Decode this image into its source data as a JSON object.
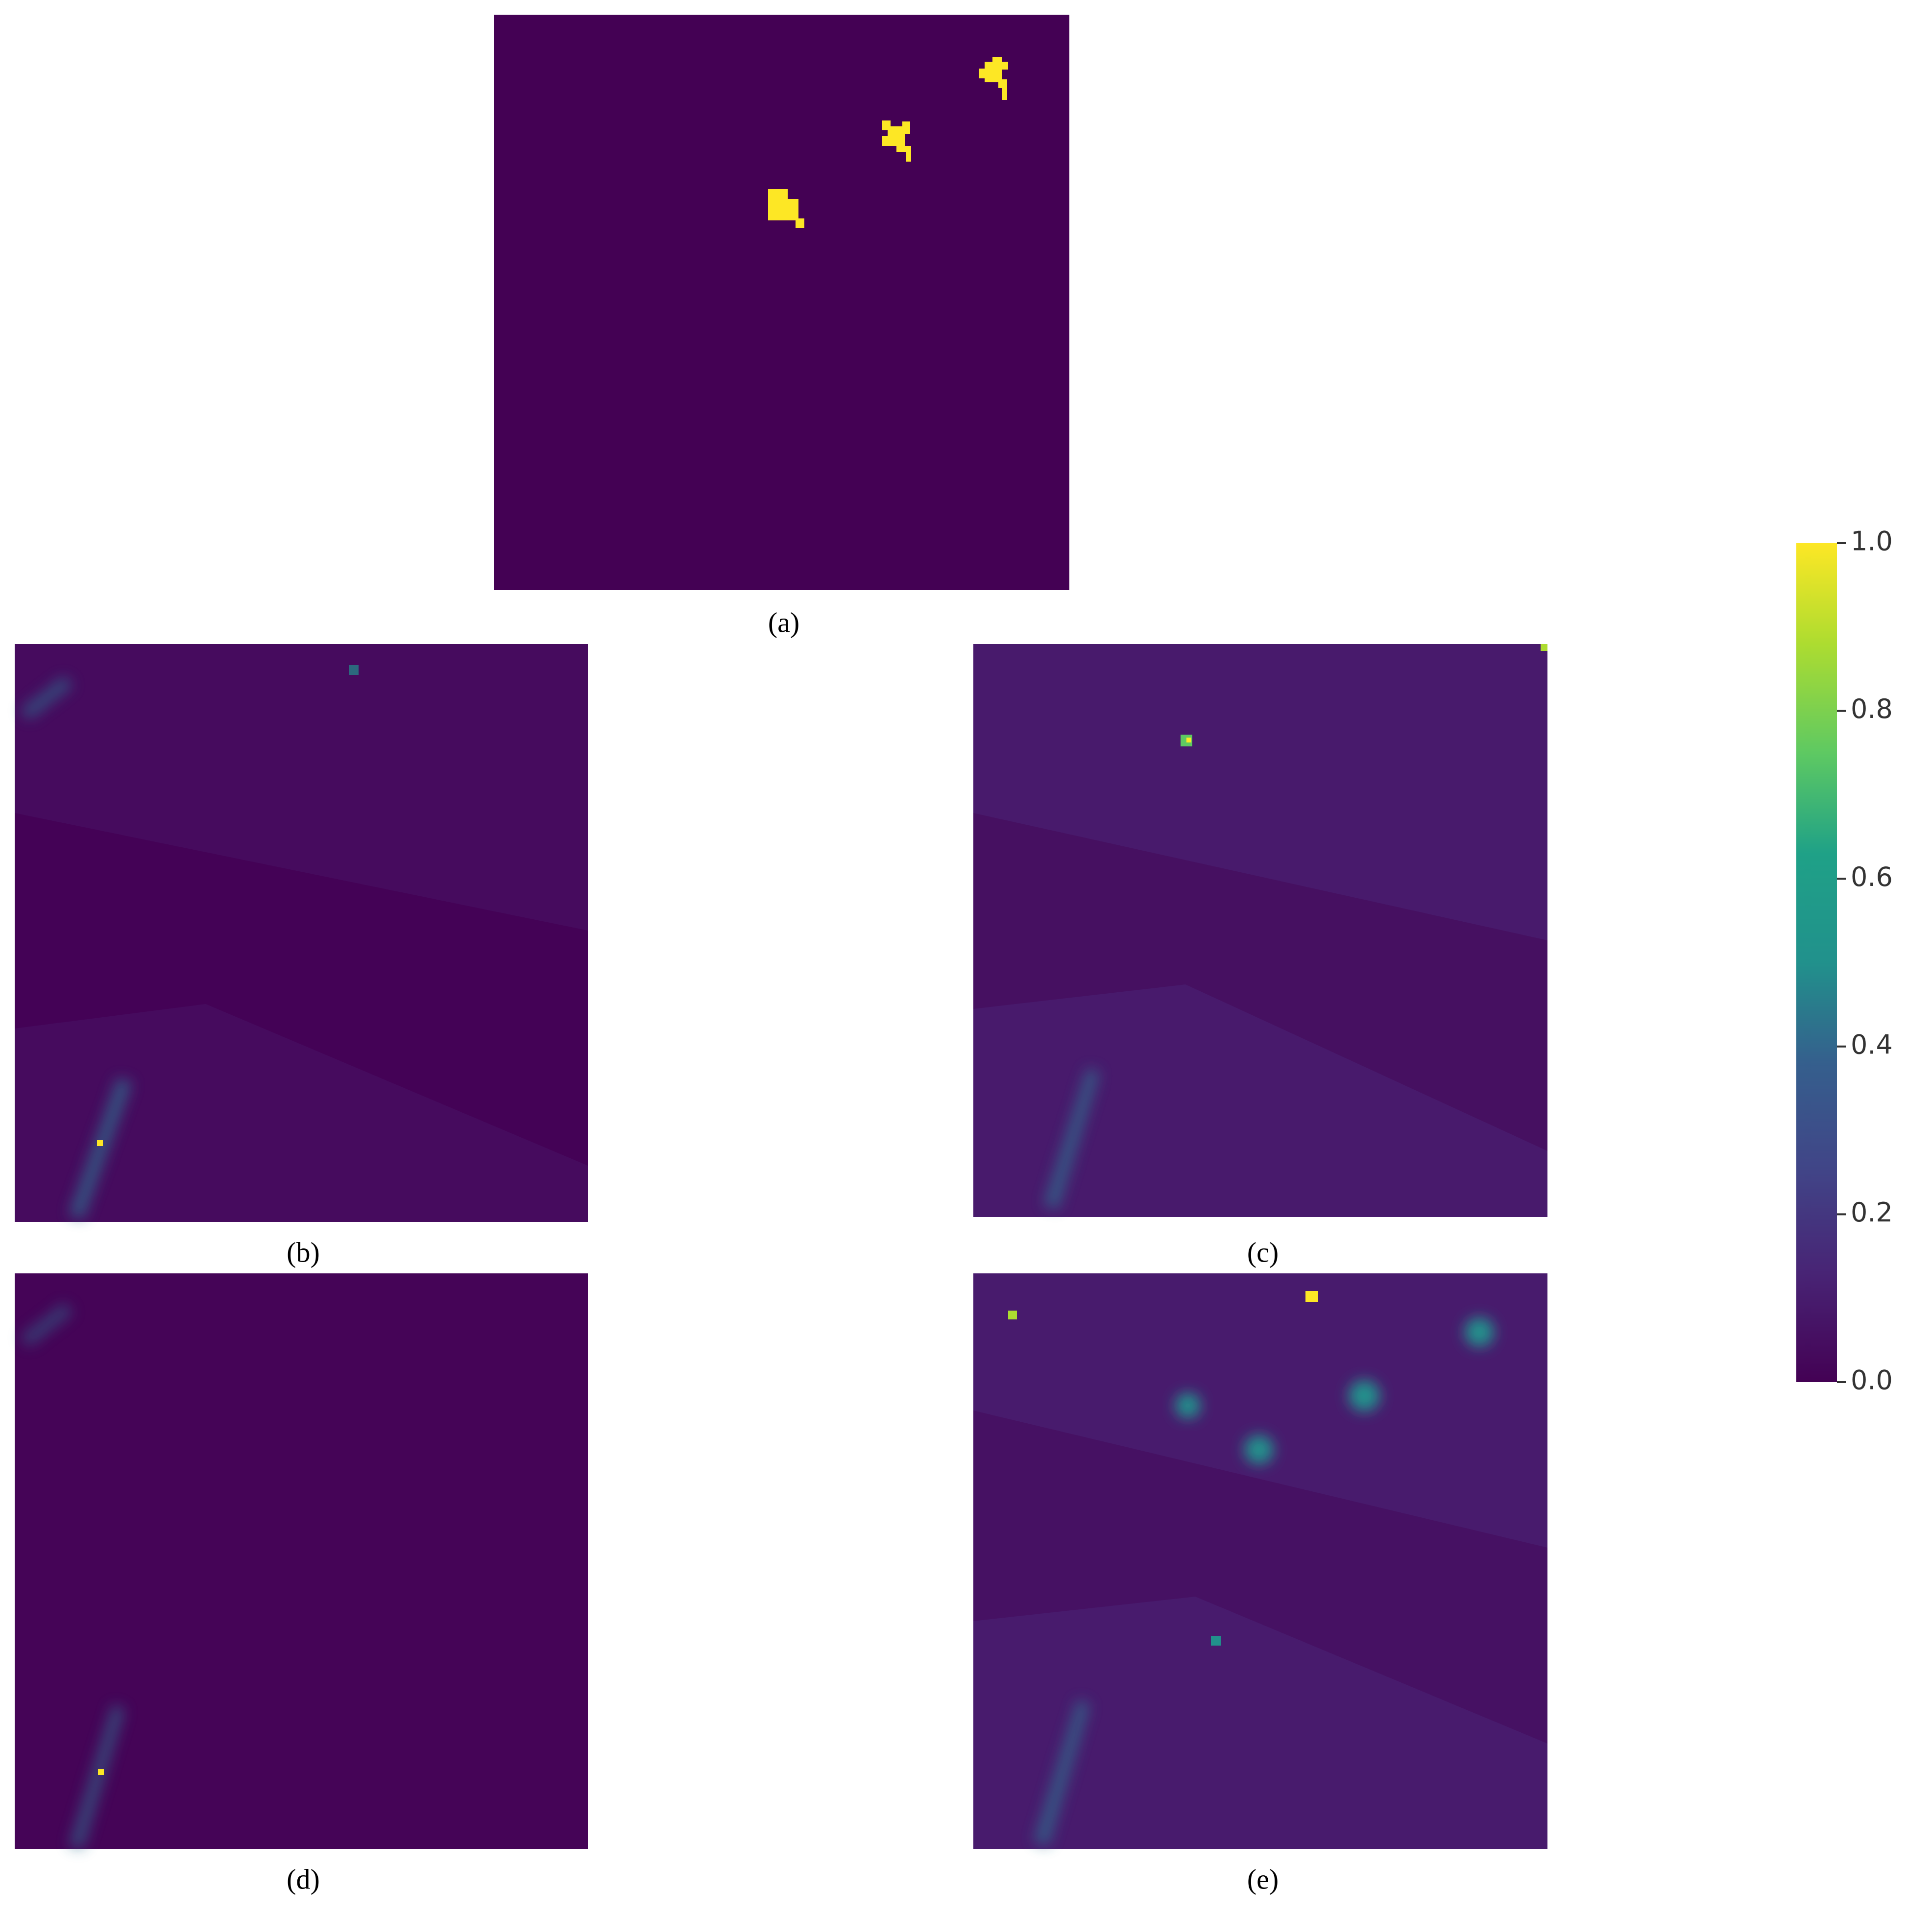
{
  "panels": [
    {
      "label": "(a)"
    },
    {
      "label": "(b)"
    },
    {
      "label": "(c)"
    },
    {
      "label": "(d)"
    },
    {
      "label": "(e)"
    }
  ],
  "colorbar": {
    "colormap": "viridis",
    "ylim": [
      0,
      1
    ],
    "ticks": [
      {
        "value": 0,
        "label": "0.0"
      },
      {
        "value": 0.2,
        "label": "0.2"
      },
      {
        "value": 0.4,
        "label": "0.4"
      },
      {
        "value": 0.6,
        "label": "0.6"
      },
      {
        "value": 0.8,
        "label": "0.8"
      },
      {
        "value": 1,
        "label": "1.0"
      }
    ]
  }
}
